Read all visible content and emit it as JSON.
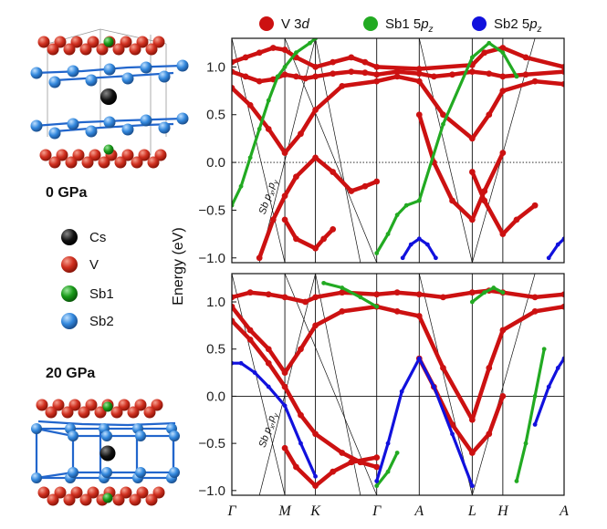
{
  "chart_data": {
    "type": "line",
    "ylabel": "Energy (eV)",
    "ylim": [
      -1.05,
      1.3
    ],
    "yticks": [
      "1.0",
      "0.5",
      "0.0",
      "−0.5",
      "−1.0"
    ],
    "ytick_values": [
      1.0,
      0.5,
      0.0,
      -0.5,
      -1.0
    ],
    "kpath_labels": [
      "Γ",
      "M",
      "K",
      "Γ",
      "A",
      "L",
      "H",
      "A"
    ],
    "kpath_positions": [
      0.0,
      0.577,
      0.91,
      1.577,
      2.04,
      2.617,
      2.95,
      3.617
    ],
    "legend": [
      {
        "name": "V 3",
        "suffix": "d",
        "color": "#cc1111"
      },
      {
        "name": "Sb1 5",
        "suffix": "p",
        "sub": "z",
        "color": "#22aa22"
      },
      {
        "name": "Sb2 5",
        "suffix": "p",
        "sub": "z",
        "color": "#1111dd"
      }
    ],
    "panels": [
      {
        "pressure": "0 GPa",
        "annotation": {
          "text": "Sb p",
          "sub1": "x",
          "mid": ",p",
          "sub2": "y"
        },
        "fermi_style": "dotted",
        "series": [
          {
            "name": "V 3d",
            "x": [
              0.0,
              0.15,
              0.3,
              0.45,
              0.577,
              0.7,
              0.8,
              0.91,
              1.1,
              1.3,
              1.45,
              1.577,
              1.8,
              2.04,
              2.2,
              2.4,
              2.617,
              2.8,
              2.95,
              3.2,
              3.617
            ],
            "y": [
              0.95,
              0.9,
              0.85,
              0.87,
              0.92,
              0.9,
              0.88,
              0.9,
              0.93,
              0.95,
              0.94,
              0.92,
              0.95,
              0.93,
              0.9,
              0.92,
              0.95,
              0.93,
              0.9,
              0.92,
              0.95
            ]
          },
          {
            "name": "V 3d",
            "x": [
              0.0,
              0.2,
              0.4,
              0.577,
              0.75,
              0.91,
              1.2,
              1.577,
              1.8,
              2.04,
              2.3,
              2.617,
              2.8,
              2.95,
              3.3,
              3.617
            ],
            "y": [
              0.78,
              0.6,
              0.35,
              0.1,
              0.3,
              0.55,
              0.8,
              0.85,
              0.9,
              0.85,
              0.5,
              0.25,
              0.5,
              0.75,
              0.85,
              0.82
            ]
          },
          {
            "name": "V 3d",
            "x": [
              0.0,
              0.15,
              0.3,
              0.45,
              0.577,
              0.7,
              0.91,
              1.1,
              1.3,
              1.45,
              1.577,
              2.04,
              2.617,
              2.75,
              2.95,
              3.2,
              3.617
            ],
            "y": [
              1.05,
              1.1,
              1.15,
              1.2,
              1.18,
              1.1,
              1.0,
              1.05,
              1.1,
              1.05,
              1.0,
              0.98,
              1.02,
              1.15,
              1.2,
              1.1,
              1.0
            ]
          },
          {
            "name": "V 3d",
            "x": [
              0.3,
              0.45,
              0.577,
              0.7,
              0.91,
              1.1,
              1.3,
              1.45,
              1.577
            ],
            "y": [
              -1.0,
              -0.6,
              -0.35,
              -0.15,
              0.05,
              -0.1,
              -0.3,
              -0.25,
              -0.2
            ]
          },
          {
            "name": "V 3d",
            "x": [
              2.04,
              2.2,
              2.4,
              2.617,
              2.75,
              2.95
            ],
            "y": [
              0.5,
              0.0,
              -0.4,
              -0.6,
              -0.3,
              0.1
            ]
          },
          {
            "name": "V 3d",
            "x": [
              0.577,
              0.7,
              0.91,
              1.0,
              1.1
            ],
            "y": [
              -0.6,
              -0.8,
              -0.9,
              -0.8,
              -0.7
            ]
          },
          {
            "name": "V 3d",
            "x": [
              2.617,
              2.75,
              2.95,
              3.1,
              3.3
            ],
            "y": [
              -0.1,
              -0.4,
              -0.75,
              -0.6,
              -0.45
            ]
          },
          {
            "name": "Sb1 5pz",
            "x": [
              0.0,
              0.1,
              0.2,
              0.3,
              0.4,
              0.5
            ],
            "y": [
              -0.45,
              -0.25,
              0.05,
              0.35,
              0.65,
              0.9
            ]
          },
          {
            "name": "Sb1 5pz",
            "x": [
              1.577,
              1.7,
              1.8,
              1.9,
              2.04
            ],
            "y": [
              -0.95,
              -0.75,
              -0.55,
              -0.45,
              -0.4
            ]
          },
          {
            "name": "Sb1 5pz",
            "x": [
              2.04,
              2.3,
              2.617,
              2.8,
              2.95,
              3.1
            ],
            "y": [
              -0.4,
              0.4,
              1.1,
              1.25,
              1.15,
              0.9
            ]
          },
          {
            "name": "Sb1 5pz",
            "x": [
              0.5,
              0.577,
              0.7,
              0.85,
              0.91
            ],
            "y": [
              0.9,
              1.0,
              1.15,
              1.25,
              1.3
            ]
          },
          {
            "name": "Sb2 5pz",
            "x": [
              1.86,
              1.95,
              2.04,
              2.13,
              2.22
            ],
            "y": [
              -1.0,
              -0.86,
              -0.8,
              -0.86,
              -1.0
            ]
          },
          {
            "name": "Sb2 5pz",
            "x": [
              3.45,
              3.55,
              3.617
            ],
            "y": [
              -1.0,
              -0.86,
              -0.8
            ]
          }
        ]
      },
      {
        "pressure": "20 GPa",
        "annotation": {
          "text": "Sb p",
          "sub1": "x",
          "mid": ",p",
          "sub2": "y"
        },
        "fermi_style": "solid",
        "series": [
          {
            "name": "V 3d",
            "x": [
              0.0,
              0.2,
              0.4,
              0.577,
              0.8,
              0.91,
              1.2,
              1.577,
              1.8,
              2.04,
              2.3,
              2.617,
              2.8,
              2.95,
              3.3,
              3.617
            ],
            "y": [
              1.05,
              1.1,
              1.08,
              1.05,
              1.0,
              1.05,
              1.1,
              1.08,
              1.1,
              1.08,
              1.05,
              1.1,
              1.12,
              1.1,
              1.05,
              1.08
            ]
          },
          {
            "name": "V 3d",
            "x": [
              0.0,
              0.2,
              0.4,
              0.577,
              0.75,
              0.91,
              1.2,
              1.577,
              1.8,
              2.04,
              2.3,
              2.617,
              2.8,
              2.95,
              3.3,
              3.617
            ],
            "y": [
              0.95,
              0.7,
              0.5,
              0.25,
              0.5,
              0.75,
              0.9,
              0.95,
              0.9,
              0.85,
              0.3,
              -0.25,
              0.3,
              0.7,
              0.9,
              0.95
            ]
          },
          {
            "name": "V 3d",
            "x": [
              0.0,
              0.2,
              0.4,
              0.577,
              0.75,
              0.91,
              1.2,
              1.4,
              1.577
            ],
            "y": [
              0.8,
              0.6,
              0.35,
              0.1,
              -0.2,
              -0.4,
              -0.6,
              -0.7,
              -0.75
            ]
          },
          {
            "name": "V 3d",
            "x": [
              0.577,
              0.7,
              0.91,
              1.1,
              1.3,
              1.577
            ],
            "y": [
              -0.55,
              -0.75,
              -0.95,
              -0.8,
              -0.7,
              -0.65
            ]
          },
          {
            "name": "V 3d",
            "x": [
              2.04,
              2.2,
              2.4,
              2.617,
              2.8,
              2.95
            ],
            "y": [
              0.4,
              0.1,
              -0.3,
              -0.6,
              -0.4,
              0.0
            ]
          },
          {
            "name": "Sb1 5pz",
            "x": [
              1.0,
              1.2,
              1.4,
              1.577
            ],
            "y": [
              1.2,
              1.15,
              1.05,
              0.95
            ]
          },
          {
            "name": "Sb1 5pz",
            "x": [
              2.617,
              2.75,
              2.85,
              2.95
            ],
            "y": [
              1.0,
              1.1,
              1.15,
              1.1
            ]
          },
          {
            "name": "Sb1 5pz",
            "x": [
              3.1,
              3.2,
              3.3,
              3.4
            ],
            "y": [
              -0.9,
              -0.5,
              0.0,
              0.5
            ]
          },
          {
            "name": "Sb1 5pz",
            "x": [
              1.577,
              1.7,
              1.8
            ],
            "y": [
              -0.95,
              -0.8,
              -0.6
            ]
          },
          {
            "name": "Sb2 5pz",
            "x": [
              0.0,
              0.1,
              0.25,
              0.4,
              0.577,
              0.75,
              0.91
            ],
            "y": [
              0.35,
              0.35,
              0.25,
              0.1,
              -0.1,
              -0.5,
              -0.85
            ]
          },
          {
            "name": "Sb2 5pz",
            "x": [
              1.577,
              1.7,
              1.85,
              2.04,
              2.2,
              2.4,
              2.617
            ],
            "y": [
              -0.9,
              -0.5,
              0.05,
              0.4,
              0.1,
              -0.4,
              -0.95
            ]
          },
          {
            "name": "Sb2 5pz",
            "x": [
              3.3,
              3.45,
              3.55,
              3.617
            ],
            "y": [
              -0.3,
              0.1,
              0.3,
              0.4
            ]
          }
        ]
      }
    ]
  },
  "structures": {
    "atoms": [
      {
        "label": "Cs",
        "color": "#111111"
      },
      {
        "label": "V",
        "color": "#d03020"
      },
      {
        "label": "Sb1",
        "color": "#1a9a1a"
      },
      {
        "label": "Sb2",
        "color": "#3388dd"
      }
    ]
  }
}
